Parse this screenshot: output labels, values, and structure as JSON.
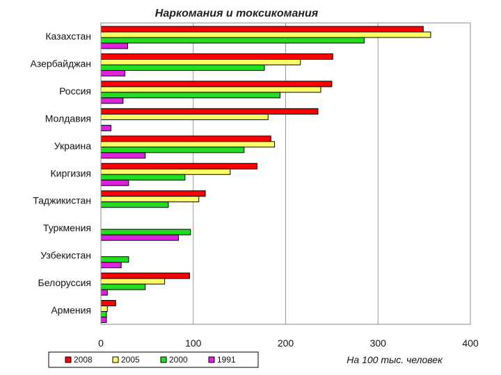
{
  "chart_data": {
    "type": "bar",
    "orientation": "horizontal",
    "title": "Наркомания и токсикомания",
    "xlabel": "На 100 тыс. человек",
    "ylabel": "",
    "xlim": [
      0,
      400
    ],
    "xticks": [
      0,
      100,
      200,
      300,
      400
    ],
    "grid": true,
    "legend_position": "bottom",
    "categories": [
      "Казахстан",
      "Азербайджан",
      "Россия",
      "Молдавия",
      "Украина",
      "Киргизия",
      "Таджикистан",
      "Туркмения",
      "Узбекистан",
      "Белоруссия",
      "Армения"
    ],
    "series": [
      {
        "name": "2008",
        "color": "#ff0000",
        "values": [
          349,
          251,
          250,
          235,
          184,
          169,
          113,
          null,
          null,
          96,
          16
        ]
      },
      {
        "name": "2005",
        "color": "#ffff66",
        "values": [
          357,
          216,
          238,
          181,
          188,
          140,
          106,
          null,
          null,
          69,
          7
        ]
      },
      {
        "name": "2000",
        "color": "#22dd22",
        "values": [
          285,
          177,
          194,
          null,
          155,
          91,
          73,
          97,
          30,
          48,
          6
        ]
      },
      {
        "name": "1991",
        "color": "#dd22dd",
        "values": [
          29,
          26,
          24,
          11,
          48,
          30,
          null,
          84,
          22,
          7,
          6
        ]
      }
    ]
  }
}
